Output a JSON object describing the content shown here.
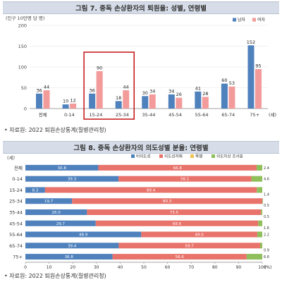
{
  "figure1": {
    "title": "그림 7. 중독 손상환자의 퇴원율: 성별, 연령별",
    "unit_label": "(인구 10만명 당 명)",
    "source": "• 자료원: 2022 퇴원손상통계(질병관리청)"
  },
  "figure2": {
    "title": "그림 8. 중독 손상환자의 의도성별 분율: 연령별",
    "yaxis_unit": "(세)",
    "source": "• 자료원: 2022 퇴원손상통계(질병관리청)"
  },
  "colors": {
    "male": "#4f81bd",
    "female": "#f39a9a",
    "highlight": "#c00000",
    "unintentional": "#4f81bd",
    "intentional": "#e8736b",
    "violence": "#f2c14e",
    "unknown": "#8fbf5a"
  },
  "chart_data": [
    {
      "type": "bar",
      "title": "그림 7. 중독 손상환자의 퇴원율: 성별, 연령별",
      "ylabel": "(인구 10만명 당 명)",
      "xunit": "(세)",
      "ylim": [
        0,
        200
      ],
      "yticks": [
        "0",
        "50",
        "100",
        "150",
        "200"
      ],
      "categories": [
        "전체",
        "0-14",
        "15-24",
        "25-34",
        "35-44",
        "45-54",
        "55-64",
        "65-74",
        "75+"
      ],
      "series": [
        {
          "name": "남자",
          "values": [
            36,
            10,
            36,
            18,
            30,
            34,
            41,
            60,
            152
          ]
        },
        {
          "name": "여자",
          "values": [
            44,
            12,
            90,
            44,
            34,
            26,
            28,
            53,
            95
          ]
        }
      ],
      "legend": "top-right",
      "highlighted_categories": [
        "15-24",
        "25-34"
      ]
    },
    {
      "type": "bar",
      "orientation": "horizontal-stacked-100",
      "title": "그림 8. 중독 손상환자의 의도성별 분율: 연령별",
      "ylabel": "(세)",
      "xunit": "(%)",
      "xlim": [
        0,
        100
      ],
      "xticks": [
        "0",
        "10",
        "20",
        "30",
        "40",
        "50",
        "60",
        "70",
        "80",
        "90",
        "100"
      ],
      "categories": [
        "전체",
        "0-14",
        "15-24",
        "25-34",
        "35-44",
        "45-54",
        "55-64",
        "65-74",
        "75+"
      ],
      "series": [
        {
          "name": "비의도성",
          "values": [
            30.8,
            39.3,
            8.3,
            19.7,
            26.0,
            29.7,
            48.9,
            39.4,
            36.8
          ]
        },
        {
          "name": "의도성자해",
          "values": [
            66.8,
            56.1,
            89.4,
            80.3,
            73.5,
            68.6,
            49.0,
            59.7,
            56.6
          ]
        },
        {
          "name": "폭행",
          "values": [
            0,
            0,
            0,
            0,
            0,
            0,
            0,
            0,
            0
          ]
        },
        {
          "name": "의도미상 조사중",
          "values": [
            2.4,
            4.6,
            1.4,
            0.5,
            0.5,
            1.6,
            2.2,
            0.9,
            6.6
          ]
        }
      ],
      "segment_labels": [
        [
          "30.8",
          "66.8",
          "2.4"
        ],
        [
          "39.3",
          "56.1",
          "4.6"
        ],
        [
          "8.3",
          "89.4",
          "1.4"
        ],
        [
          "19.7",
          "80.3",
          "0.5"
        ],
        [
          "26.0",
          "73.5",
          "0.5"
        ],
        [
          "29.7",
          "68.6",
          "1.6"
        ],
        [
          "48.9",
          "49.0",
          "2.2"
        ],
        [
          "39.4",
          "59.7",
          "0.9"
        ],
        [
          "36.8",
          "56.6",
          "6.6"
        ]
      ],
      "legend": "top"
    }
  ]
}
